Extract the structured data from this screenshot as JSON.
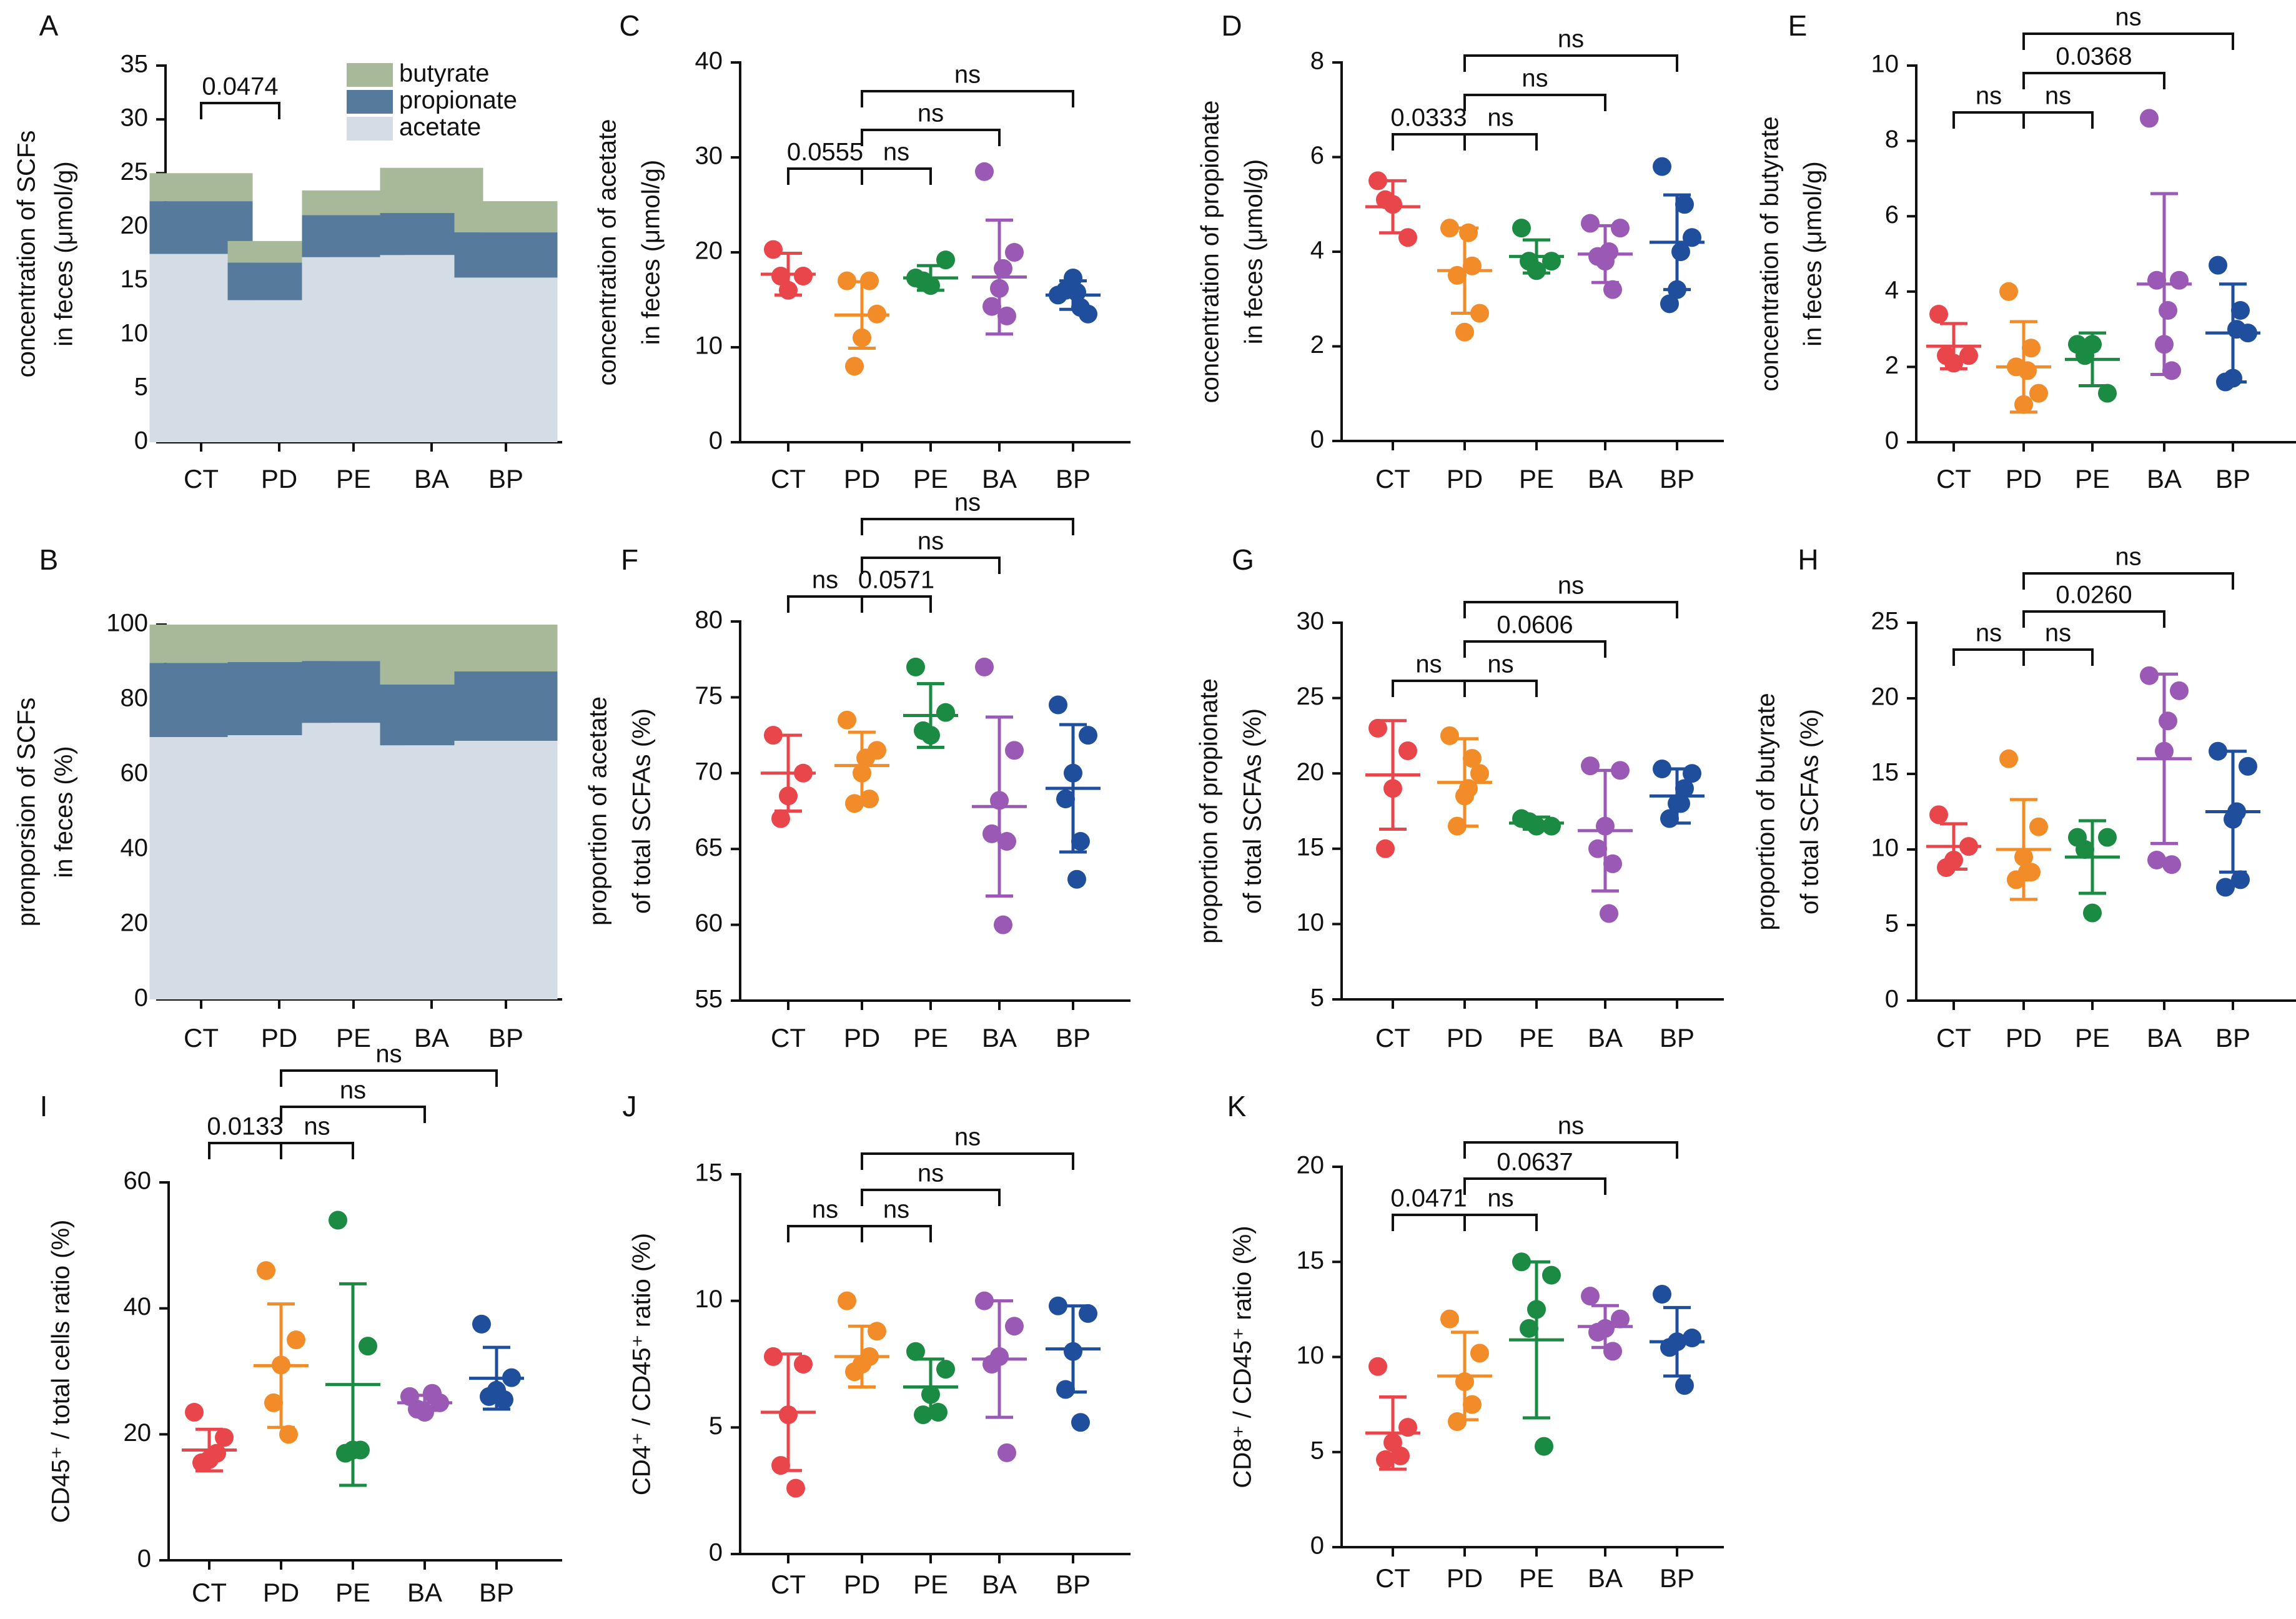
{
  "colors": {
    "CT": "#e8464a",
    "PD": "#f28c28",
    "PE": "#1b8a43",
    "BA": "#9b59b6",
    "BP": "#1f4e9c",
    "butyrate": "#a8b99a",
    "propionate": "#567a9c",
    "acetate": "#d4dde6",
    "axis": "#111111"
  },
  "chart_data": [
    {
      "id": "A",
      "type": "bar",
      "stacked": true,
      "panel_letter": "A",
      "ylabel": [
        "concentration of SCFs",
        "in feces (μmol/g)"
      ],
      "ylim": [
        0,
        35
      ],
      "ticks": [
        0,
        5,
        10,
        15,
        20,
        25,
        30,
        35
      ],
      "categories": [
        "CT",
        "PD",
        "PE",
        "BA",
        "BP"
      ],
      "series": [
        {
          "name": "acetate",
          "values": [
            17.5,
            13.2,
            17.2,
            17.4,
            15.3
          ]
        },
        {
          "name": "propionate",
          "values": [
            4.9,
            3.5,
            3.9,
            3.9,
            4.2
          ]
        },
        {
          "name": "butyrate",
          "values": [
            2.6,
            2.0,
            2.3,
            4.2,
            2.9
          ]
        }
      ],
      "legend": [
        "butyrate",
        "propionate",
        "acetate"
      ],
      "legend_position": "top-right",
      "comparisons": [
        {
          "from": "CT",
          "to": "PD",
          "label": "0.0474",
          "level": 0
        }
      ]
    },
    {
      "id": "B",
      "type": "bar",
      "stacked": true,
      "panel_letter": "B",
      "ylabel": [
        "pronporsion of SCFs",
        "in feces (%)"
      ],
      "ylim": [
        0,
        100
      ],
      "ticks": [
        0,
        20,
        40,
        60,
        80,
        100
      ],
      "categories": [
        "CT",
        "PD",
        "PE",
        "BA",
        "BP"
      ],
      "series": [
        {
          "name": "acetate",
          "values": [
            70,
            70.5,
            73.8,
            67.8,
            69
          ]
        },
        {
          "name": "propionate",
          "values": [
            19.8,
            19.5,
            16.5,
            16.2,
            18.5
          ]
        },
        {
          "name": "butyrate",
          "values": [
            10.2,
            10,
            9.7,
            16,
            12.5
          ]
        }
      ],
      "comparisons": []
    },
    {
      "id": "C",
      "type": "scatter",
      "panel_letter": "C",
      "ylabel": [
        "concentration of acetate",
        "in feces (μmol/g)"
      ],
      "ylim": [
        0,
        40
      ],
      "ticks": [
        0,
        10,
        20,
        30,
        40
      ],
      "categories": [
        "CT",
        "PD",
        "PE",
        "BA",
        "BP"
      ],
      "points": [
        [
          20.3,
          17.5,
          16.0,
          17.5
        ],
        [
          17.0,
          13.5,
          11.0,
          8.0,
          17.0
        ],
        [
          17.3,
          19.2,
          16.5,
          17.0
        ],
        [
          28.5,
          20.0,
          16.2,
          14.3,
          13.3,
          18.3
        ],
        [
          15.5,
          13.5,
          17.3,
          16.0,
          14.2,
          15.8
        ]
      ],
      "mean": [
        17.7,
        13.4,
        17.3,
        17.4,
        15.5
      ],
      "sd": [
        2.2,
        3.5,
        1.3,
        6.0,
        1.5
      ],
      "comparisons": [
        {
          "from": "CT",
          "to": "PD",
          "label": "0.0555",
          "level": 0
        },
        {
          "from": "PD",
          "to": "PE",
          "label": "ns",
          "level": 0
        },
        {
          "from": "PD",
          "to": "BA",
          "label": "ns",
          "level": 1
        },
        {
          "from": "PD",
          "to": "BP",
          "label": "ns",
          "level": 2
        }
      ]
    },
    {
      "id": "D",
      "type": "scatter",
      "panel_letter": "D",
      "ylabel": [
        "concentration of propionate",
        "in feces (μmol/g)"
      ],
      "ylim": [
        0,
        8
      ],
      "ticks": [
        0,
        2,
        4,
        6,
        8
      ],
      "categories": [
        "CT",
        "PD",
        "PE",
        "BA",
        "BP"
      ],
      "points": [
        [
          5.5,
          4.3,
          5.0,
          5.1
        ],
        [
          4.5,
          2.7,
          2.3,
          3.5,
          3.7,
          4.4
        ],
        [
          4.5,
          3.8,
          3.6,
          3.8
        ],
        [
          4.6,
          4.5,
          3.8,
          3.9,
          3.2,
          4.0
        ],
        [
          5.8,
          4.3,
          3.2,
          2.9,
          5.0,
          4.0
        ]
      ],
      "mean": [
        4.95,
        3.6,
        3.9,
        3.95,
        4.2
      ],
      "sd": [
        0.55,
        0.9,
        0.35,
        0.6,
        1.0
      ],
      "comparisons": [
        {
          "from": "CT",
          "to": "PD",
          "label": "0.0333",
          "level": 0
        },
        {
          "from": "PD",
          "to": "PE",
          "label": "ns",
          "level": 0
        },
        {
          "from": "PD",
          "to": "BA",
          "label": "ns",
          "level": 1
        },
        {
          "from": "PD",
          "to": "BP",
          "label": "ns",
          "level": 2
        }
      ]
    },
    {
      "id": "E",
      "type": "scatter",
      "panel_letter": "E",
      "ylabel": [
        "concentration of butyrate",
        "in feces (μmol/g)"
      ],
      "ylim": [
        0,
        10
      ],
      "ticks": [
        0,
        2,
        4,
        6,
        8,
        10
      ],
      "categories": [
        "CT",
        "PD",
        "PE",
        "BA",
        "BP"
      ],
      "points": [
        [
          3.4,
          2.3,
          2.1,
          2.3
        ],
        [
          4.0,
          1.3,
          1.0,
          2.0,
          2.5,
          1.9
        ],
        [
          2.6,
          1.3,
          2.6,
          2.3
        ],
        [
          8.6,
          4.3,
          2.6,
          4.3,
          1.9,
          3.5
        ],
        [
          4.7,
          2.9,
          1.7,
          1.6,
          3.5,
          3.0
        ]
      ],
      "mean": [
        2.55,
        2.0,
        2.2,
        4.2,
        2.9
      ],
      "sd": [
        0.6,
        1.2,
        0.7,
        2.4,
        1.3
      ],
      "comparisons": [
        {
          "from": "CT",
          "to": "PD",
          "label": "ns",
          "level": 0
        },
        {
          "from": "PD",
          "to": "PE",
          "label": "ns",
          "level": 0
        },
        {
          "from": "PD",
          "to": "BA",
          "label": "0.0368",
          "level": 1
        },
        {
          "from": "PD",
          "to": "BP",
          "label": "ns",
          "level": 2
        }
      ]
    },
    {
      "id": "F",
      "type": "scatter",
      "panel_letter": "F",
      "ylabel": [
        "proportion of acetate",
        "of total SCFAs  (%)"
      ],
      "ylim": [
        55,
        80
      ],
      "ticks": [
        55,
        60,
        65,
        70,
        75,
        80
      ],
      "categories": [
        "CT",
        "PD",
        "PE",
        "BA",
        "BP"
      ],
      "points": [
        [
          72.5,
          70.0,
          68.5,
          67.0
        ],
        [
          73.5,
          71.5,
          70.0,
          68.0,
          68.3,
          71.0
        ],
        [
          77.0,
          74.0,
          72.5,
          72.8
        ],
        [
          77.0,
          71.5,
          68.2,
          66.0,
          65.5,
          60.0
        ],
        [
          74.5,
          72.5,
          70.0,
          68.3,
          65.5,
          63.0
        ]
      ],
      "mean": [
        70.0,
        70.5,
        73.8,
        67.8,
        69.0
      ],
      "sd": [
        2.5,
        2.2,
        2.1,
        5.9,
        4.2
      ],
      "comparisons": [
        {
          "from": "CT",
          "to": "PD",
          "label": "ns",
          "level": 0
        },
        {
          "from": "PD",
          "to": "PE",
          "label": "0.0571",
          "level": 0
        },
        {
          "from": "PD",
          "to": "BA",
          "label": "ns",
          "level": 1
        },
        {
          "from": "PD",
          "to": "BP",
          "label": "ns",
          "level": 2
        }
      ]
    },
    {
      "id": "G",
      "type": "scatter",
      "panel_letter": "G",
      "ylabel": [
        "proportion of propionate",
        "of total SCFAs  (%)"
      ],
      "ylim": [
        5,
        30
      ],
      "ticks": [
        5,
        10,
        15,
        20,
        25,
        30
      ],
      "categories": [
        "CT",
        "PD",
        "PE",
        "BA",
        "BP"
      ],
      "points": [
        [
          23.0,
          21.5,
          19.0,
          15.0
        ],
        [
          22.5,
          20.0,
          18.5,
          16.5,
          21.0,
          19.0
        ],
        [
          17.0,
          16.5,
          16.5,
          16.8
        ],
        [
          20.5,
          20.2,
          16.5,
          15.0,
          14.0,
          10.7
        ],
        [
          20.3,
          20.0,
          18.0,
          17.0,
          19.0,
          18.0
        ]
      ],
      "mean": [
        19.9,
        19.4,
        16.7,
        16.2,
        18.5
      ],
      "sd": [
        3.6,
        2.9,
        0.4,
        4.0,
        1.8
      ],
      "comparisons": [
        {
          "from": "CT",
          "to": "PD",
          "label": "ns",
          "level": 0
        },
        {
          "from": "PD",
          "to": "PE",
          "label": "ns",
          "level": 0
        },
        {
          "from": "PD",
          "to": "BA",
          "label": "0.0606",
          "level": 1
        },
        {
          "from": "PD",
          "to": "BP",
          "label": "ns",
          "level": 2
        }
      ]
    },
    {
      "id": "H",
      "type": "scatter",
      "panel_letter": "H",
      "ylabel": [
        "proportion of butyrate",
        "of total SCFAs  (%)"
      ],
      "ylim": [
        0,
        25
      ],
      "ticks": [
        0,
        5,
        10,
        15,
        20,
        25
      ],
      "categories": [
        "CT",
        "PD",
        "PE",
        "BA",
        "BP"
      ],
      "points": [
        [
          12.3,
          10.2,
          9.3,
          8.8
        ],
        [
          16.0,
          11.5,
          9.5,
          8.0,
          8.5,
          8.5
        ],
        [
          10.8,
          10.8,
          5.8,
          10.0
        ],
        [
          21.5,
          20.5,
          16.5,
          9.3,
          9.0,
          18.5
        ],
        [
          16.5,
          15.5,
          12.0,
          7.5,
          8.0,
          12.5
        ]
      ],
      "mean": [
        10.2,
        10.0,
        9.5,
        16.0,
        12.5
      ],
      "sd": [
        1.5,
        3.3,
        2.4,
        5.6,
        4.0
      ],
      "comparisons": [
        {
          "from": "CT",
          "to": "PD",
          "label": "ns",
          "level": 0
        },
        {
          "from": "PD",
          "to": "PE",
          "label": "ns",
          "level": 0
        },
        {
          "from": "PD",
          "to": "BA",
          "label": "0.0260",
          "level": 1
        },
        {
          "from": "PD",
          "to": "BP",
          "label": "ns",
          "level": 2
        }
      ]
    },
    {
      "id": "I",
      "type": "scatter",
      "panel_letter": "I",
      "ylabel": [
        "CD45⁺ / total cells ratio (%)"
      ],
      "ylim": [
        0,
        60
      ],
      "ticks": [
        0,
        20,
        40,
        60
      ],
      "categories": [
        "CT",
        "PD",
        "PE",
        "BA",
        "BP"
      ],
      "points": [
        [
          23.5,
          19.5,
          16.0,
          15.5,
          17.0
        ],
        [
          46.0,
          35.0,
          31.0,
          25.0,
          20.0
        ],
        [
          54.0,
          34.0,
          17.5,
          17.0,
          17.5
        ],
        [
          26.0,
          25.0,
          23.5,
          24.0,
          26.5
        ],
        [
          37.5,
          29.0,
          27.0,
          26.0,
          25.5
        ]
      ],
      "mean": [
        17.5,
        30.9,
        27.9,
        25.0,
        28.9
      ],
      "sd": [
        3.3,
        9.8,
        16.0,
        1.2,
        4.9
      ],
      "comparisons": [
        {
          "from": "CT",
          "to": "PD",
          "label": "0.0133",
          "level": 0
        },
        {
          "from": "PD",
          "to": "PE",
          "label": "ns",
          "level": 0
        },
        {
          "from": "PD",
          "to": "BA",
          "label": "ns",
          "level": 1
        },
        {
          "from": "PD",
          "to": "BP",
          "label": "ns",
          "level": 2
        }
      ]
    },
    {
      "id": "J",
      "type": "scatter",
      "panel_letter": "J",
      "ylabel": [
        "CD4⁺ / CD45⁺ ratio (%)"
      ],
      "ylim": [
        0,
        15
      ],
      "ticks": [
        0,
        5,
        10,
        15
      ],
      "categories": [
        "CT",
        "PD",
        "PE",
        "BA",
        "BP"
      ],
      "points": [
        [
          7.8,
          7.5,
          5.5,
          3.5,
          2.6
        ],
        [
          10.0,
          8.8,
          7.5,
          7.2,
          7.8
        ],
        [
          8.0,
          7.3,
          6.3,
          5.5,
          5.6
        ],
        [
          10.0,
          9.0,
          7.8,
          7.5,
          4.0
        ],
        [
          9.8,
          9.5,
          8.0,
          6.5,
          5.2
        ]
      ],
      "mean": [
        5.6,
        7.8,
        6.6,
        7.7,
        8.1
      ],
      "sd": [
        2.3,
        1.2,
        1.1,
        2.3,
        1.7
      ],
      "comparisons": [
        {
          "from": "CT",
          "to": "PD",
          "label": "ns",
          "level": 0
        },
        {
          "from": "PD",
          "to": "PE",
          "label": "ns",
          "level": 0
        },
        {
          "from": "PD",
          "to": "BA",
          "label": "ns",
          "level": 1
        },
        {
          "from": "PD",
          "to": "BP",
          "label": "ns",
          "level": 2
        }
      ]
    },
    {
      "id": "K",
      "type": "scatter",
      "panel_letter": "K",
      "ylabel": [
        "CD8⁺ / CD45⁺ ratio (%)"
      ],
      "ylim": [
        0,
        20
      ],
      "ticks": [
        0,
        5,
        10,
        15,
        20
      ],
      "categories": [
        "CT",
        "PD",
        "PE",
        "BA",
        "BP"
      ],
      "points": [
        [
          9.5,
          6.3,
          5.5,
          4.6,
          4.8
        ],
        [
          12.0,
          10.2,
          8.7,
          6.6,
          7.5
        ],
        [
          15.0,
          14.3,
          12.5,
          11.5,
          5.3
        ],
        [
          13.2,
          12.0,
          11.5,
          11.3,
          10.3
        ],
        [
          13.3,
          11.0,
          10.8,
          10.5,
          8.5
        ]
      ],
      "mean": [
        6.0,
        9.0,
        10.9,
        11.6,
        10.8
      ],
      "sd": [
        1.9,
        2.3,
        4.1,
        1.1,
        1.8
      ],
      "comparisons": [
        {
          "from": "CT",
          "to": "PD",
          "label": "0.0471",
          "level": 0
        },
        {
          "from": "PD",
          "to": "PE",
          "label": "ns",
          "level": 0
        },
        {
          "from": "PD",
          "to": "BA",
          "label": "0.0637",
          "level": 1
        },
        {
          "from": "PD",
          "to": "BP",
          "label": "ns",
          "level": 2
        }
      ]
    }
  ]
}
